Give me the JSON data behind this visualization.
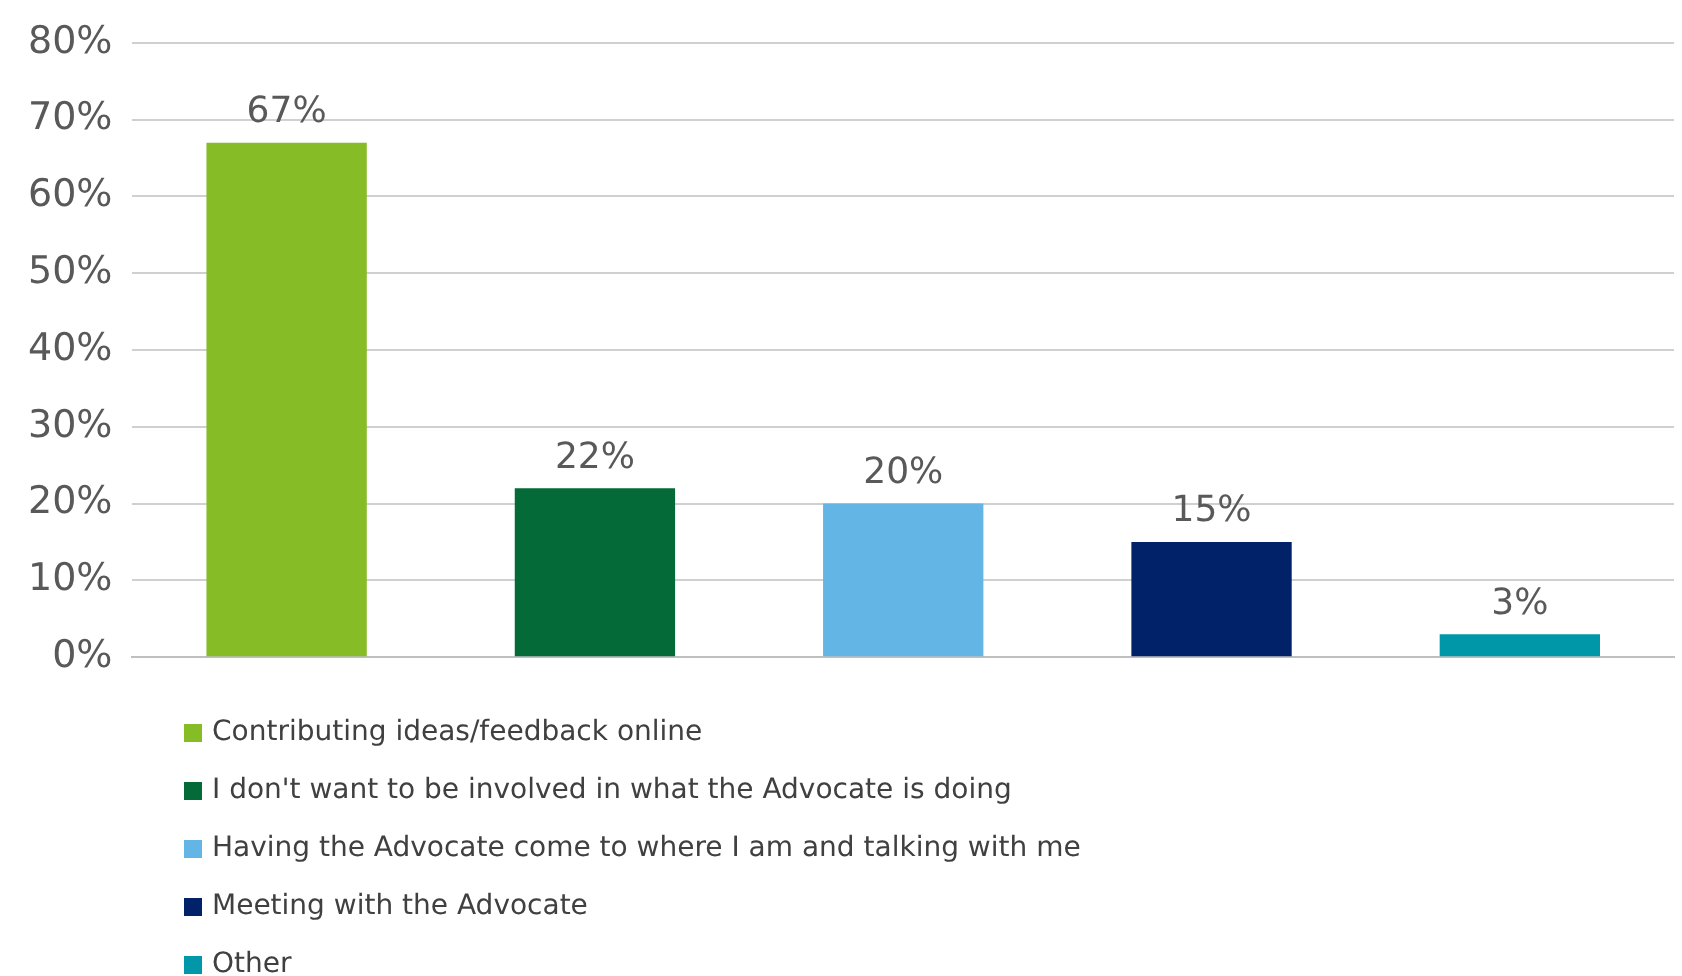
{
  "chart_data": {
    "type": "bar",
    "categories": [
      null,
      null,
      null,
      null,
      null
    ],
    "series": [
      {
        "name": "Contributing ideas/feedback online",
        "color": "#86bc25",
        "values": [
          67,
          null,
          null,
          null,
          null
        ],
        "value_labels": [
          "67%",
          null,
          null,
          null,
          null
        ]
      },
      {
        "name": "I don't want to be involved in what the Advocate is doing",
        "color": "#046a38",
        "values": [
          null,
          22,
          null,
          null,
          null
        ],
        "value_labels": [
          null,
          "22%",
          null,
          null,
          null
        ]
      },
      {
        "name": "Having the Advocate come to where I am and talking with me",
        "color": "#62b5e5",
        "values": [
          null,
          null,
          20,
          null,
          null
        ],
        "value_labels": [
          null,
          null,
          "20%",
          null,
          null
        ]
      },
      {
        "name": "Meeting with the Advocate",
        "color": "#012169",
        "values": [
          null,
          null,
          null,
          15,
          null
        ],
        "value_labels": [
          null,
          null,
          null,
          "15%",
          null
        ]
      },
      {
        "name": "Other",
        "color": "#0097a9",
        "values": [
          null,
          null,
          null,
          null,
          3
        ],
        "value_labels": [
          null,
          null,
          null,
          null,
          "3%"
        ]
      }
    ],
    "ylim": [
      0,
      80
    ],
    "yticks": [
      {
        "value": 0,
        "label": "0%"
      },
      {
        "value": 10,
        "label": "10%"
      },
      {
        "value": 20,
        "label": "20%"
      },
      {
        "value": 30,
        "label": "30%"
      },
      {
        "value": 40,
        "label": "40%"
      },
      {
        "value": 50,
        "label": "50%"
      },
      {
        "value": 60,
        "label": "60%"
      },
      {
        "value": 70,
        "label": "70%"
      },
      {
        "value": 80,
        "label": "80%"
      }
    ],
    "grid": "y",
    "legend": "bottom"
  }
}
